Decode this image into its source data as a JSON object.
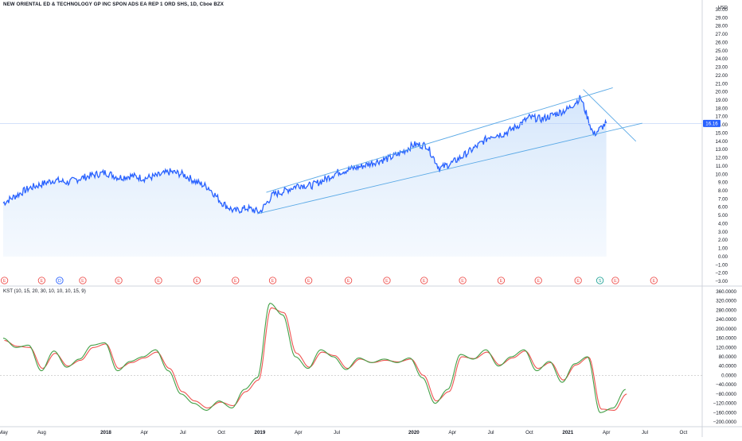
{
  "title": "NEW ORIENTAL ED & TECHNOLOGY GP INC SPON ADS EA REP 1 ORD SHS, 1D, Cboe BZX",
  "currency": "USD",
  "last_price_label": "16.16",
  "colors": {
    "price_line": "#2962ff",
    "fill": "#e3efff",
    "trend": "#5aa9e6",
    "kst_line": "#43a047",
    "kst_signal": "#ef5350",
    "last_badge": "#2962ff",
    "earnings": "#ef5350",
    "dividend": "#2962ff",
    "split": "#26a69a"
  },
  "kst": {
    "label": "KST (10, 15, 20, 30, 10, 10, 10, 15, 9)"
  },
  "x_axis": {
    "ticks": [
      "May",
      "Aug",
      "2018",
      "Apr",
      "Jul",
      "Oct",
      "2019",
      "Apr",
      "Jul",
      "2020",
      "Apr",
      "Jul",
      "Oct",
      "2021",
      "Apr",
      "Jul",
      "Oct"
    ],
    "bold": [
      "2018",
      "2019",
      "2020",
      "2021"
    ]
  },
  "events": [
    {
      "type": "earnings",
      "label": "E"
    },
    {
      "type": "earnings",
      "label": "E"
    },
    {
      "type": "dividend",
      "label": "D"
    },
    {
      "type": "earnings",
      "label": "E"
    },
    {
      "type": "earnings",
      "label": "E"
    },
    {
      "type": "earnings",
      "label": "E"
    },
    {
      "type": "earnings",
      "label": "E"
    },
    {
      "type": "earnings",
      "label": "E"
    },
    {
      "type": "earnings",
      "label": "E"
    },
    {
      "type": "earnings",
      "label": "E"
    },
    {
      "type": "earnings",
      "label": "E"
    },
    {
      "type": "earnings",
      "label": "E"
    },
    {
      "type": "earnings",
      "label": "E"
    },
    {
      "type": "earnings",
      "label": "E"
    },
    {
      "type": "earnings",
      "label": "E"
    },
    {
      "type": "earnings",
      "label": "E"
    },
    {
      "type": "earnings",
      "label": "E"
    },
    {
      "type": "split",
      "label": "S"
    },
    {
      "type": "earnings",
      "label": "E"
    },
    {
      "type": "earnings",
      "label": "E"
    }
  ],
  "chart_data": [
    {
      "type": "line",
      "title": "NEW ORIENTAL ED & TECHNOLOGY GP INC SPON ADS EA REP 1 ORD SHS, 1D, Cboe BZX",
      "x_range": [
        "2017-05",
        "2021-10"
      ],
      "ylim": [
        -3,
        30
      ],
      "y_ticks": [
        "30.00",
        "29.00",
        "28.00",
        "27.00",
        "26.00",
        "25.00",
        "24.00",
        "23.00",
        "22.00",
        "21.00",
        "20.00",
        "19.00",
        "18.00",
        "17.00",
        "16.00",
        "15.00",
        "14.00",
        "13.00",
        "12.00",
        "11.00",
        "10.00",
        "9.00",
        "8.00",
        "7.00",
        "6.00",
        "5.00",
        "4.00",
        "3.00",
        "2.00",
        "1.00",
        "0.00",
        "−1.00",
        "−2.00",
        "−3.00"
      ],
      "x": [
        "2017-05",
        "2017-06",
        "2017-07",
        "2017-08",
        "2017-09",
        "2017-10",
        "2017-11",
        "2017-12",
        "2018-01",
        "2018-02",
        "2018-03",
        "2018-04",
        "2018-05",
        "2018-06",
        "2018-07",
        "2018-08",
        "2018-09",
        "2018-10",
        "2018-11",
        "2018-12",
        "2019-01",
        "2019-02",
        "2019-03",
        "2019-04",
        "2019-05",
        "2019-06",
        "2019-07",
        "2019-08",
        "2019-09",
        "2019-10",
        "2019-11",
        "2019-12",
        "2020-01",
        "2020-02",
        "2020-03",
        "2020-04",
        "2020-05",
        "2020-06",
        "2020-07",
        "2020-08",
        "2020-09",
        "2020-10",
        "2020-11",
        "2020-12",
        "2021-01",
        "2021-02",
        "2021-03",
        "2021-04"
      ],
      "series": [
        {
          "values": [
            6.5,
            7.4,
            8.3,
            8.8,
            9.3,
            9.0,
            9.5,
            9.9,
            10.2,
            9.6,
            9.8,
            9.5,
            9.8,
            10.3,
            10.0,
            9.1,
            8.4,
            6.6,
            5.5,
            5.9,
            5.4,
            7.5,
            8.0,
            8.7,
            8.6,
            9.3,
            10.2,
            10.6,
            11.0,
            11.5,
            11.9,
            12.6,
            13.6,
            13.5,
            10.7,
            11.4,
            12.4,
            13.5,
            14.7,
            14.9,
            15.8,
            16.9,
            16.7,
            17.3,
            17.9,
            19.3,
            14.8,
            16.2
          ]
        }
      ],
      "last_value": 16.16,
      "annotations": [
        "ascending channel",
        "descending trendline"
      ]
    },
    {
      "type": "line",
      "title": "KST (10, 15, 20, 30, 10, 10, 10, 15, 9)",
      "ylim": [
        -200,
        360
      ],
      "y_ticks": [
        "360.0000",
        "320.0000",
        "280.0000",
        "240.0000",
        "200.0000",
        "160.0000",
        "120.0000",
        "80.0000",
        "40.0000",
        "0.0000",
        "−40.0000",
        "−80.0000",
        "−120.0000",
        "−160.0000",
        "−200.0000"
      ],
      "series": [
        {
          "name": "KST",
          "values": [
            160,
            120,
            130,
            20,
            105,
            35,
            70,
            130,
            140,
            20,
            60,
            80,
            110,
            20,
            -80,
            -120,
            -150,
            -110,
            -140,
            -60,
            -10,
            310,
            260,
            80,
            30,
            110,
            80,
            25,
            75,
            55,
            70,
            55,
            75,
            -10,
            -120,
            -60,
            90,
            70,
            110,
            40,
            80,
            110,
            20,
            60,
            -30,
            50,
            80,
            -160,
            -140,
            -60
          ]
        },
        {
          "name": "Signal",
          "values": [
            150,
            125,
            120,
            30,
            95,
            40,
            65,
            120,
            135,
            30,
            55,
            75,
            100,
            30,
            -70,
            -110,
            -140,
            -115,
            -130,
            -70,
            -20,
            290,
            270,
            95,
            35,
            100,
            85,
            30,
            70,
            55,
            65,
            58,
            70,
            0,
            -110,
            -70,
            80,
            72,
            100,
            45,
            75,
            105,
            30,
            55,
            -20,
            45,
            78,
            -145,
            -150,
            -80
          ]
        }
      ]
    }
  ]
}
